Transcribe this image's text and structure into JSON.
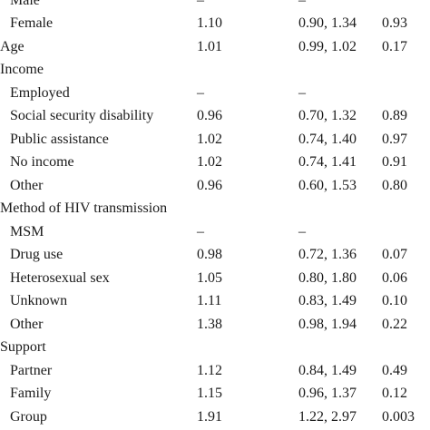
{
  "rows": [
    {
      "label": "Male",
      "or": "–",
      "ci": "–",
      "p": "",
      "indent": true
    },
    {
      "label": "Female",
      "or": "1.10",
      "ci": "0.90, 1.34",
      "p": "0.93",
      "indent": true
    },
    {
      "label": "Age",
      "or": "1.01",
      "ci": "0.99, 1.02",
      "p": "0.17",
      "indent": false
    },
    {
      "label": "Income",
      "or": "",
      "ci": "",
      "p": "",
      "indent": false
    },
    {
      "label": "Employed",
      "or": "–",
      "ci": "–",
      "p": "",
      "indent": true
    },
    {
      "label": "Social security disability",
      "or": "0.96",
      "ci": "0.70, 1.32",
      "p": "0.89",
      "indent": true
    },
    {
      "label": "Public assistance",
      "or": "1.02",
      "ci": "0.74, 1.40",
      "p": "0.97",
      "indent": true
    },
    {
      "label": "No income",
      "or": "1.02",
      "ci": "0.74, 1.41",
      "p": "0.91",
      "indent": true
    },
    {
      "label": "Other",
      "or": "0.96",
      "ci": "0.60, 1.53",
      "p": "0.80",
      "indent": true
    },
    {
      "label": "Method of HIV transmission",
      "or": "",
      "ci": "",
      "p": "",
      "indent": false
    },
    {
      "label": "MSM",
      "or": "–",
      "ci": "–",
      "p": "",
      "indent": true
    },
    {
      "label": "Drug use",
      "or": "0.98",
      "ci": "0.72, 1.36",
      "p": "0.07",
      "indent": true
    },
    {
      "label": "Heterosexual sex",
      "or": "1.05",
      "ci": "0.80, 1.80",
      "p": "0.06",
      "indent": true
    },
    {
      "label": "Unknown",
      "or": "1.11",
      "ci": "0.83, 1.49",
      "p": "0.10",
      "indent": true
    },
    {
      "label": "Other",
      "or": "1.38",
      "ci": "0.98, 1.94",
      "p": "0.22",
      "indent": true
    },
    {
      "label": "Support",
      "or": "",
      "ci": "",
      "p": "",
      "indent": false
    },
    {
      "label": "Partner",
      "or": "1.12",
      "ci": "0.84, 1.49",
      "p": "0.49",
      "indent": true
    },
    {
      "label": "Family",
      "or": "1.15",
      "ci": "0.96, 1.37",
      "p": "0.12",
      "indent": true
    },
    {
      "label": "Group",
      "or": "1.91",
      "ci": "1.22, 2.97",
      "p": "0.003",
      "indent": true
    }
  ]
}
